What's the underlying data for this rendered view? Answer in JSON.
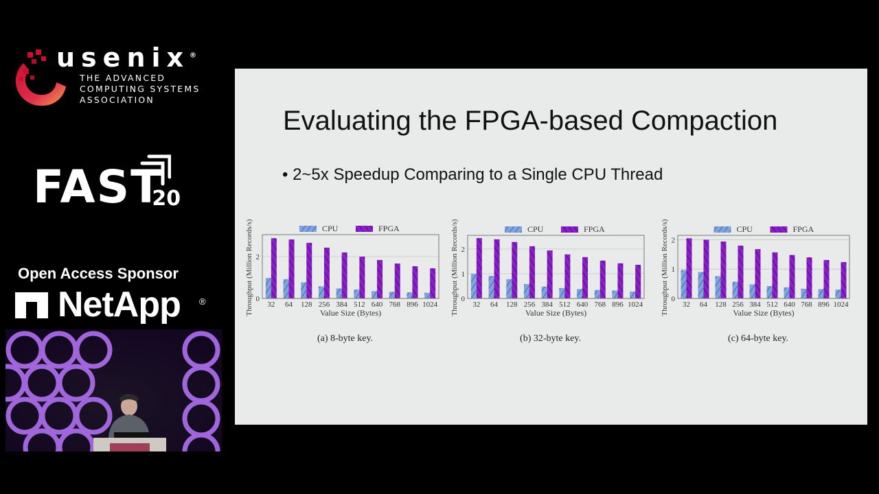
{
  "branding": {
    "usenix_word": "usenix",
    "usenix_reg": "®",
    "usenix_subtitle": [
      "THE ADVANCED",
      "COMPUTING SYSTEMS",
      "ASSOCIATION"
    ],
    "conference": "FAST",
    "conference_year": "’20",
    "sponsor_label": "Open Access Sponsor",
    "sponsor_name": "NetApp",
    "sponsor_reg": "®"
  },
  "slide": {
    "title": "Evaluating the FPGA-based Compaction",
    "bullet": "• 2~5x Speedup Comparing to a Single CPU Thread"
  },
  "colors": {
    "cpu": "#7fa3dc",
    "fpga": "#8a1fc9",
    "slide_bg": "#e9ebea",
    "page_bg": "#000000"
  },
  "chart_data": [
    {
      "type": "bar",
      "title": "(a) 8-byte key.",
      "caption": "(a) 8-byte key.",
      "xlabel": "Value Size (Bytes)",
      "ylabel": "Throughput (Million Records/s)",
      "categories": [
        "32",
        "64",
        "128",
        "256",
        "384",
        "512",
        "640",
        "768",
        "896",
        "1024"
      ],
      "ylim": [
        0,
        3.05
      ],
      "yticks": [
        0,
        2
      ],
      "grid": true,
      "legend_position": "top",
      "series": [
        {
          "name": "CPU",
          "values": [
            0.98,
            0.92,
            0.77,
            0.58,
            0.48,
            0.43,
            0.35,
            0.32,
            0.29,
            0.27
          ]
        },
        {
          "name": "FPGA",
          "values": [
            2.88,
            2.82,
            2.66,
            2.43,
            2.2,
            2.0,
            1.84,
            1.67,
            1.54,
            1.44
          ]
        }
      ]
    },
    {
      "type": "bar",
      "title": "(b) 32-byte key.",
      "caption": "(b) 32-byte key.",
      "xlabel": "Value Size (Bytes)",
      "ylabel": "Throughput (Million Records/s)",
      "categories": [
        "32",
        "64",
        "128",
        "256",
        "384",
        "512",
        "640",
        "768",
        "896",
        "1024"
      ],
      "ylim": [
        0,
        2.55
      ],
      "yticks": [
        0,
        1,
        2
      ],
      "grid": true,
      "legend_position": "top",
      "series": [
        {
          "name": "CPU",
          "values": [
            0.99,
            0.91,
            0.78,
            0.58,
            0.48,
            0.42,
            0.38,
            0.34,
            0.32,
            0.28
          ]
        },
        {
          "name": "FPGA",
          "values": [
            2.44,
            2.39,
            2.28,
            2.11,
            1.94,
            1.78,
            1.67,
            1.53,
            1.42,
            1.36
          ]
        }
      ]
    },
    {
      "type": "bar",
      "title": "(c) 64-byte key.",
      "caption": "(c) 64-byte key.",
      "xlabel": "Value Size (Bytes)",
      "ylabel": "Throughput (Million Records/s)",
      "categories": [
        "32",
        "64",
        "128",
        "256",
        "384",
        "512",
        "640",
        "768",
        "896",
        "1024"
      ],
      "ylim": [
        0,
        2.15
      ],
      "yticks": [
        0,
        1,
        2
      ],
      "grid": true,
      "legend_position": "top",
      "series": [
        {
          "name": "CPU",
          "values": [
            0.97,
            0.9,
            0.76,
            0.57,
            0.48,
            0.42,
            0.38,
            0.33,
            0.32,
            0.3
          ]
        },
        {
          "name": "FPGA",
          "values": [
            2.05,
            2.0,
            1.94,
            1.8,
            1.68,
            1.57,
            1.48,
            1.4,
            1.31,
            1.24
          ]
        }
      ]
    }
  ]
}
